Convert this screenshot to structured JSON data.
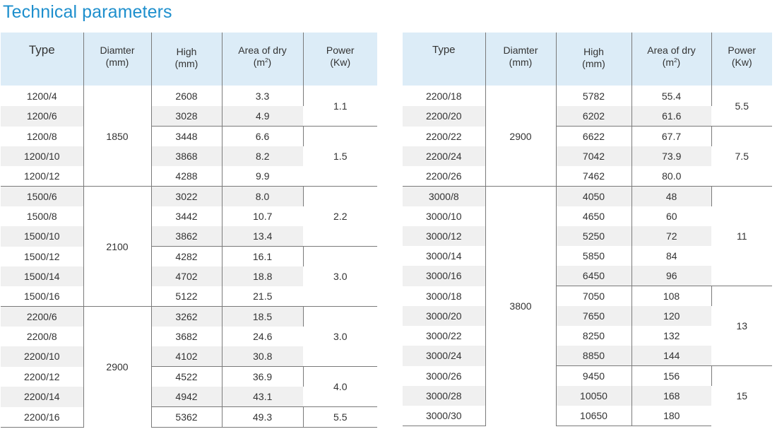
{
  "title": "Technical parameters",
  "headers": {
    "type": "Type",
    "diameter": "Diamter",
    "diameter_unit": "(mm)",
    "high": "High",
    "high_unit": "(mm)",
    "area": "Area of dry",
    "area_unit_pre": "(m",
    "area_unit_sup": "2",
    "area_unit_post": ")",
    "power": "Power",
    "power_unit": "(Kw)"
  },
  "left": {
    "rows": [
      {
        "type": "1200/4",
        "high": "2608",
        "area": "3.3"
      },
      {
        "type": "1200/6",
        "high": "3028",
        "area": "4.9"
      },
      {
        "type": "1200/8",
        "high": "3448",
        "area": "6.6"
      },
      {
        "type": "1200/10",
        "high": "3868",
        "area": "8.2"
      },
      {
        "type": "1200/12",
        "high": "4288",
        "area": "9.9"
      },
      {
        "type": "1500/6",
        "high": "3022",
        "area": "8.0"
      },
      {
        "type": "1500/8",
        "high": "3442",
        "area": "10.7"
      },
      {
        "type": "1500/10",
        "high": "3862",
        "area": "13.4"
      },
      {
        "type": "1500/12",
        "high": "4282",
        "area": "16.1"
      },
      {
        "type": "1500/14",
        "high": "4702",
        "area": "18.8"
      },
      {
        "type": "1500/16",
        "high": "5122",
        "area": "21.5"
      },
      {
        "type": "2200/6",
        "high": "3262",
        "area": "18.5"
      },
      {
        "type": "2200/8",
        "high": "3682",
        "area": "24.6"
      },
      {
        "type": "2200/10",
        "high": "4102",
        "area": "30.8"
      },
      {
        "type": "2200/12",
        "high": "4522",
        "area": "36.9"
      },
      {
        "type": "2200/14",
        "high": "4942",
        "area": "43.1"
      },
      {
        "type": "2200/16",
        "high": "5362",
        "area": "49.3"
      }
    ],
    "diameters": [
      "1850",
      "2100",
      "2900"
    ],
    "powers": [
      "1.1",
      "1.5",
      "2.2",
      "3.0",
      "3.0",
      "4.0",
      "5.5"
    ]
  },
  "right": {
    "rows": [
      {
        "type": "2200/18",
        "high": "5782",
        "area": "55.4"
      },
      {
        "type": "2200/20",
        "high": "6202",
        "area": "61.6"
      },
      {
        "type": "2200/22",
        "high": "6622",
        "area": "67.7"
      },
      {
        "type": "2200/24",
        "high": "7042",
        "area": "73.9"
      },
      {
        "type": "2200/26",
        "high": "7462",
        "area": "80.0"
      },
      {
        "type": "3000/8",
        "high": "4050",
        "area": "48"
      },
      {
        "type": "3000/10",
        "high": "4650",
        "area": "60"
      },
      {
        "type": "3000/12",
        "high": "5250",
        "area": "72"
      },
      {
        "type": "3000/14",
        "high": "5850",
        "area": "84"
      },
      {
        "type": "3000/16",
        "high": "6450",
        "area": "96"
      },
      {
        "type": "3000/18",
        "high": "7050",
        "area": "108"
      },
      {
        "type": "3000/20",
        "high": "7650",
        "area": "120"
      },
      {
        "type": "3000/22",
        "high": "8250",
        "area": "132"
      },
      {
        "type": "3000/24",
        "high": "8850",
        "area": "144"
      },
      {
        "type": "3000/26",
        "high": "9450",
        "area": "156"
      },
      {
        "type": "3000/28",
        "high": "10050",
        "area": "168"
      },
      {
        "type": "3000/30",
        "high": "10650",
        "area": "180"
      }
    ],
    "diameters": [
      "2900",
      "3800"
    ],
    "powers": [
      "5.5",
      "7.5",
      "11",
      "13",
      "15"
    ]
  }
}
